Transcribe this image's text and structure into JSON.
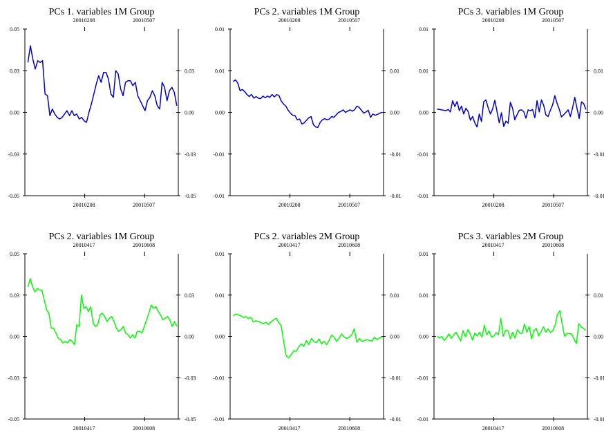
{
  "chart_data": [
    {
      "type": "line",
      "title": "PCs 1. variables 1M Group",
      "color": "#0000cc",
      "x_ticks": [
        "20010208",
        "20010507"
      ],
      "y_ticks": [
        "0.05",
        "0.03",
        "0.00",
        "-0.03",
        "-0.05"
      ],
      "right_ticks": [
        "0.03",
        "0.00",
        "-0.03",
        "-0.05"
      ],
      "ylim": [
        -0.05,
        0.05
      ],
      "series": [
        {
          "values": [
            0.03,
            0.04,
            0.032,
            0.026,
            0.031,
            0.03,
            0.031,
            0.011,
            0.01,
            -0.002,
            0.002,
            -0.001,
            -0.003,
            -0.004,
            -0.003,
            -0.001,
            0.001,
            -0.002,
            0.001,
            -0.002,
            -0.001,
            -0.004,
            -0.003,
            -0.005,
            -0.006,
            0.0,
            0.005,
            0.011,
            0.017,
            0.022,
            0.018,
            0.024,
            0.024,
            0.02,
            0.011,
            0.009,
            0.025,
            0.023,
            0.014,
            0.01,
            0.018,
            0.019,
            0.019,
            0.016,
            0.018,
            0.01,
            0.007,
            0.004,
            0.001,
            0.007,
            0.009,
            0.013,
            0.01,
            0.004,
            0.002,
            0.018,
            0.015,
            0.007,
            0.013,
            0.015,
            0.012,
            0.004
          ]
        }
      ]
    },
    {
      "type": "line",
      "title": "PCs 2. variables 1M Group",
      "color": "#0000cc",
      "x_ticks": [
        "20010208",
        "20010507"
      ],
      "y_ticks": [
        "0.01",
        "0.01",
        "0.00",
        "-0.01",
        "-0.01"
      ],
      "right_ticks": [
        "0.01",
        "0.00",
        "-0.01",
        "-0.01"
      ],
      "ylim": [
        -0.02,
        0.02
      ],
      "series": [
        {
          "values": [
            0.0074,
            0.0078,
            0.007,
            0.0052,
            0.0055,
            0.005,
            0.0043,
            0.0038,
            0.0043,
            0.0034,
            0.0038,
            0.0034,
            0.0033,
            0.0039,
            0.0035,
            0.0039,
            0.0036,
            0.0043,
            0.0037,
            0.0043,
            0.004,
            0.0027,
            0.002,
            0.0015,
            0.0005,
            -0.0002,
            -0.0007,
            -0.0008,
            -0.0018,
            -0.0016,
            -0.0028,
            -0.0025,
            -0.0019,
            -0.0013,
            -0.001,
            -0.0029,
            -0.0035,
            -0.0036,
            -0.0024,
            -0.0018,
            -0.0015,
            -0.0018,
            -0.0016,
            -0.001,
            -0.0012,
            -0.0006,
            0.0,
            0.0002,
            0.0006,
            0.0,
            0.0003,
            0.0006,
            0.0003,
            0.0006,
            0.0015,
            0.0012,
            0.0005,
            -0.0002,
            0.0001,
            0.0005,
            -0.0012,
            -0.0004,
            -0.0007,
            -0.0005,
            -0.0002,
            0.0
          ]
        }
      ]
    },
    {
      "type": "line",
      "title": "PCs 3. variables 1M Group",
      "color": "#0000cc",
      "x_ticks": [
        "20010208",
        "20010507"
      ],
      "y_ticks": [
        "0.01",
        "0.01",
        "0.00",
        "-0.01",
        "-0.01"
      ],
      "right_ticks": [
        "0.01",
        "0.00",
        "-0.01",
        "-0.01"
      ],
      "ylim": [
        -0.02,
        0.02
      ],
      "series": [
        {
          "values": [
            0.0008,
            0.0007,
            0.0006,
            0.0005,
            0.0004,
            0.0007,
            0.0001,
            0.0028,
            0.0014,
            0.0026,
            0.0004,
            0.0015,
            -0.0004,
            0.001,
            0.0002,
            -0.0019,
            -0.001,
            -0.0025,
            -0.0035,
            -0.0004,
            -0.0022,
            0.0025,
            0.003,
            0.0011,
            -0.0004,
            0.0008,
            0.0029,
            0.0002,
            -0.0025,
            -0.0001,
            -0.0034,
            -0.0021,
            -0.0026,
            0.0024,
            0.001,
            -0.0018,
            -0.0006,
            0.0005,
            0.0006,
            0.0002,
            -0.0014,
            0.0006,
            0.0004,
            0.0007,
            -0.0013,
            0.0028,
            0.0001,
            0.003,
            0.0017,
            -0.0006,
            -0.001,
            0.0005,
            0.0018,
            0.004,
            0.0022,
            0.0008,
            -0.0011,
            -0.0006,
            0.0,
            0.0006,
            -0.001,
            0.0011,
            0.0036,
            0.001,
            -0.0015,
            0.0025,
            0.0021,
            0.0007
          ]
        }
      ]
    },
    {
      "type": "line",
      "title": "PCs 2. variables 1M Group",
      "color": "#00ff00",
      "x_ticks": [
        "20010417",
        "20010608"
      ],
      "y_ticks": [
        "0.05",
        "0.03",
        "0.00",
        "-0.03",
        "-0.05"
      ],
      "right_ticks": [
        "0.03",
        "0.00",
        "-0.03",
        "-0.05"
      ],
      "ylim": [
        -0.05,
        0.05
      ],
      "series": [
        {
          "values": [
            0.03,
            0.035,
            0.03,
            0.027,
            0.029,
            0.028,
            0.028,
            0.022,
            0.016,
            0.014,
            0.005,
            0.005,
            0.002,
            -0.001,
            -0.002,
            -0.004,
            -0.003,
            -0.004,
            -0.002,
            -0.003,
            -0.005,
            0.007,
            0.006,
            0.025,
            0.017,
            0.018,
            0.015,
            0.018,
            0.008,
            0.006,
            0.007,
            0.013,
            0.014,
            0.012,
            0.009,
            0.011,
            0.012,
            0.009,
            0.005,
            0.003,
            0.004,
            0.006,
            0.002,
            0.001,
            -0.001,
            0.001,
            -0.001,
            0.003,
            0.003,
            0.002,
            0.006,
            0.01,
            0.014,
            0.019,
            0.017,
            0.018,
            0.015,
            0.013,
            0.01,
            0.011,
            0.012,
            0.01,
            0.006,
            0.009,
            0.006
          ]
        }
      ]
    },
    {
      "type": "line",
      "title": "PCs 2. variables 2M Group",
      "color": "#00ff00",
      "x_ticks": [
        "20010417",
        "20010608"
      ],
      "y_ticks": [
        "0.01",
        "0.01",
        "0.00",
        "-0.01",
        "-0.01"
      ],
      "right_ticks": [
        "0.01",
        "0.00",
        "-0.01",
        "-0.01"
      ],
      "ylim": [
        -0.02,
        0.02
      ],
      "series": [
        {
          "values": [
            0.005,
            0.0054,
            0.0052,
            0.005,
            0.0046,
            0.0048,
            0.0043,
            0.0046,
            0.0035,
            0.0038,
            0.0036,
            0.0033,
            0.0031,
            0.0034,
            0.0029,
            0.0035,
            0.004,
            0.0044,
            0.0034,
            0.0026,
            -0.0012,
            -0.0047,
            -0.0052,
            -0.0044,
            -0.0035,
            -0.0036,
            -0.0025,
            -0.0018,
            -0.0024,
            -0.001,
            -0.002,
            -0.0005,
            -0.0013,
            -0.0015,
            -0.0006,
            -0.0018,
            -0.0012,
            -0.002,
            -0.001,
            0.0003,
            -0.0002,
            -0.0012,
            -0.0004,
            0.0006,
            -0.0002,
            -0.0005,
            -0.0002,
            0.0004,
            0.0018,
            -0.0014,
            -0.0005,
            -0.0012,
            -0.001,
            -0.0008,
            -0.001,
            -0.0011,
            -0.0002,
            -0.0008,
            -0.0004,
            -0.0002
          ]
        }
      ]
    },
    {
      "type": "line",
      "title": "PCs 3. variables 2M Group",
      "color": "#00ff00",
      "x_ticks": [
        "20010417",
        "20010608"
      ],
      "y_ticks": [
        "0.01",
        "0.01",
        "0.00",
        "-0.01",
        "-0.01"
      ],
      "right_ticks": [
        "0.01",
        "0.00",
        "-0.01",
        "-0.01"
      ],
      "ylim": [
        -0.02,
        0.02
      ],
      "series": [
        {
          "values": [
            0.0,
            -0.0004,
            0.0,
            -0.001,
            -0.0003,
            0.0006,
            -0.0005,
            0.0004,
            0.001,
            -0.0001,
            -0.0011,
            0.0014,
            -0.0001,
            0.0016,
            0.0006,
            -0.0009,
            0.0008,
            0.0001,
            0.001,
            -0.0002,
            0.0027,
            0.0004,
            0.0013,
            -0.0002,
            0.0001,
            0.0009,
            0.0004,
            0.0044,
            0.0,
            0.0015,
            0.0014,
            -0.0006,
            0.001,
            -0.0004,
            0.0016,
            0.0008,
            0.0007,
            0.003,
            0.001,
            0.0024,
            -0.0006,
            0.0014,
            0.0019,
            0.0001,
            0.0011,
            0.0023,
            0.001,
            0.0018,
            0.0009,
            0.0014,
            0.0028,
            0.0054,
            0.0062,
            0.0028,
            0.0,
            0.0007,
            0.0007,
            0.0005,
            -0.0007,
            -0.0017,
            0.0031,
            0.0023,
            0.0019,
            0.0014
          ]
        }
      ]
    }
  ]
}
